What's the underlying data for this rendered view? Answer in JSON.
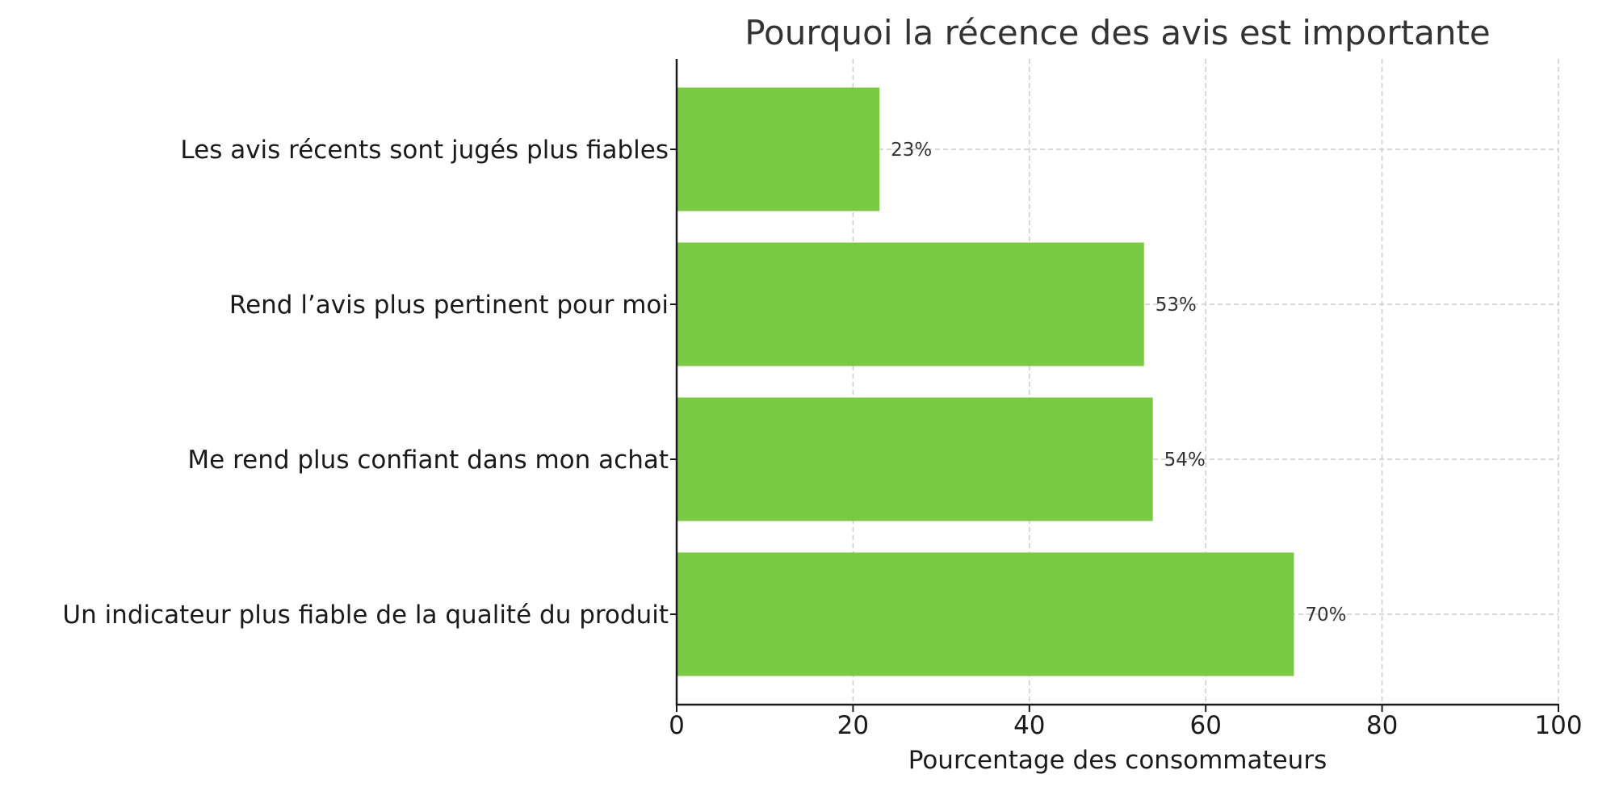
{
  "chart_data": {
    "type": "bar",
    "orientation": "horizontal",
    "title": "Pourquoi la récence des avis est importante",
    "xlabel": "Pourcentage des consommateurs",
    "ylabel": "",
    "categories": [
      "Les avis récents sont jugés plus fiables",
      "Rend l’avis plus pertinent pour moi",
      "Me rend plus confiant dans mon achat",
      "Un indicateur plus fiable de la qualité du produit"
    ],
    "values": [
      23,
      53,
      54,
      70
    ],
    "value_labels": [
      "23%",
      "53%",
      "54%",
      "70%"
    ],
    "xlim": [
      0,
      100
    ],
    "xticks": [
      0,
      20,
      40,
      60,
      80,
      100
    ],
    "xtick_labels": [
      "0",
      "20",
      "40",
      "60",
      "80",
      "100"
    ],
    "grid": true,
    "grid_style": "dashed",
    "legend": null,
    "bar_color": "#7ac943"
  }
}
